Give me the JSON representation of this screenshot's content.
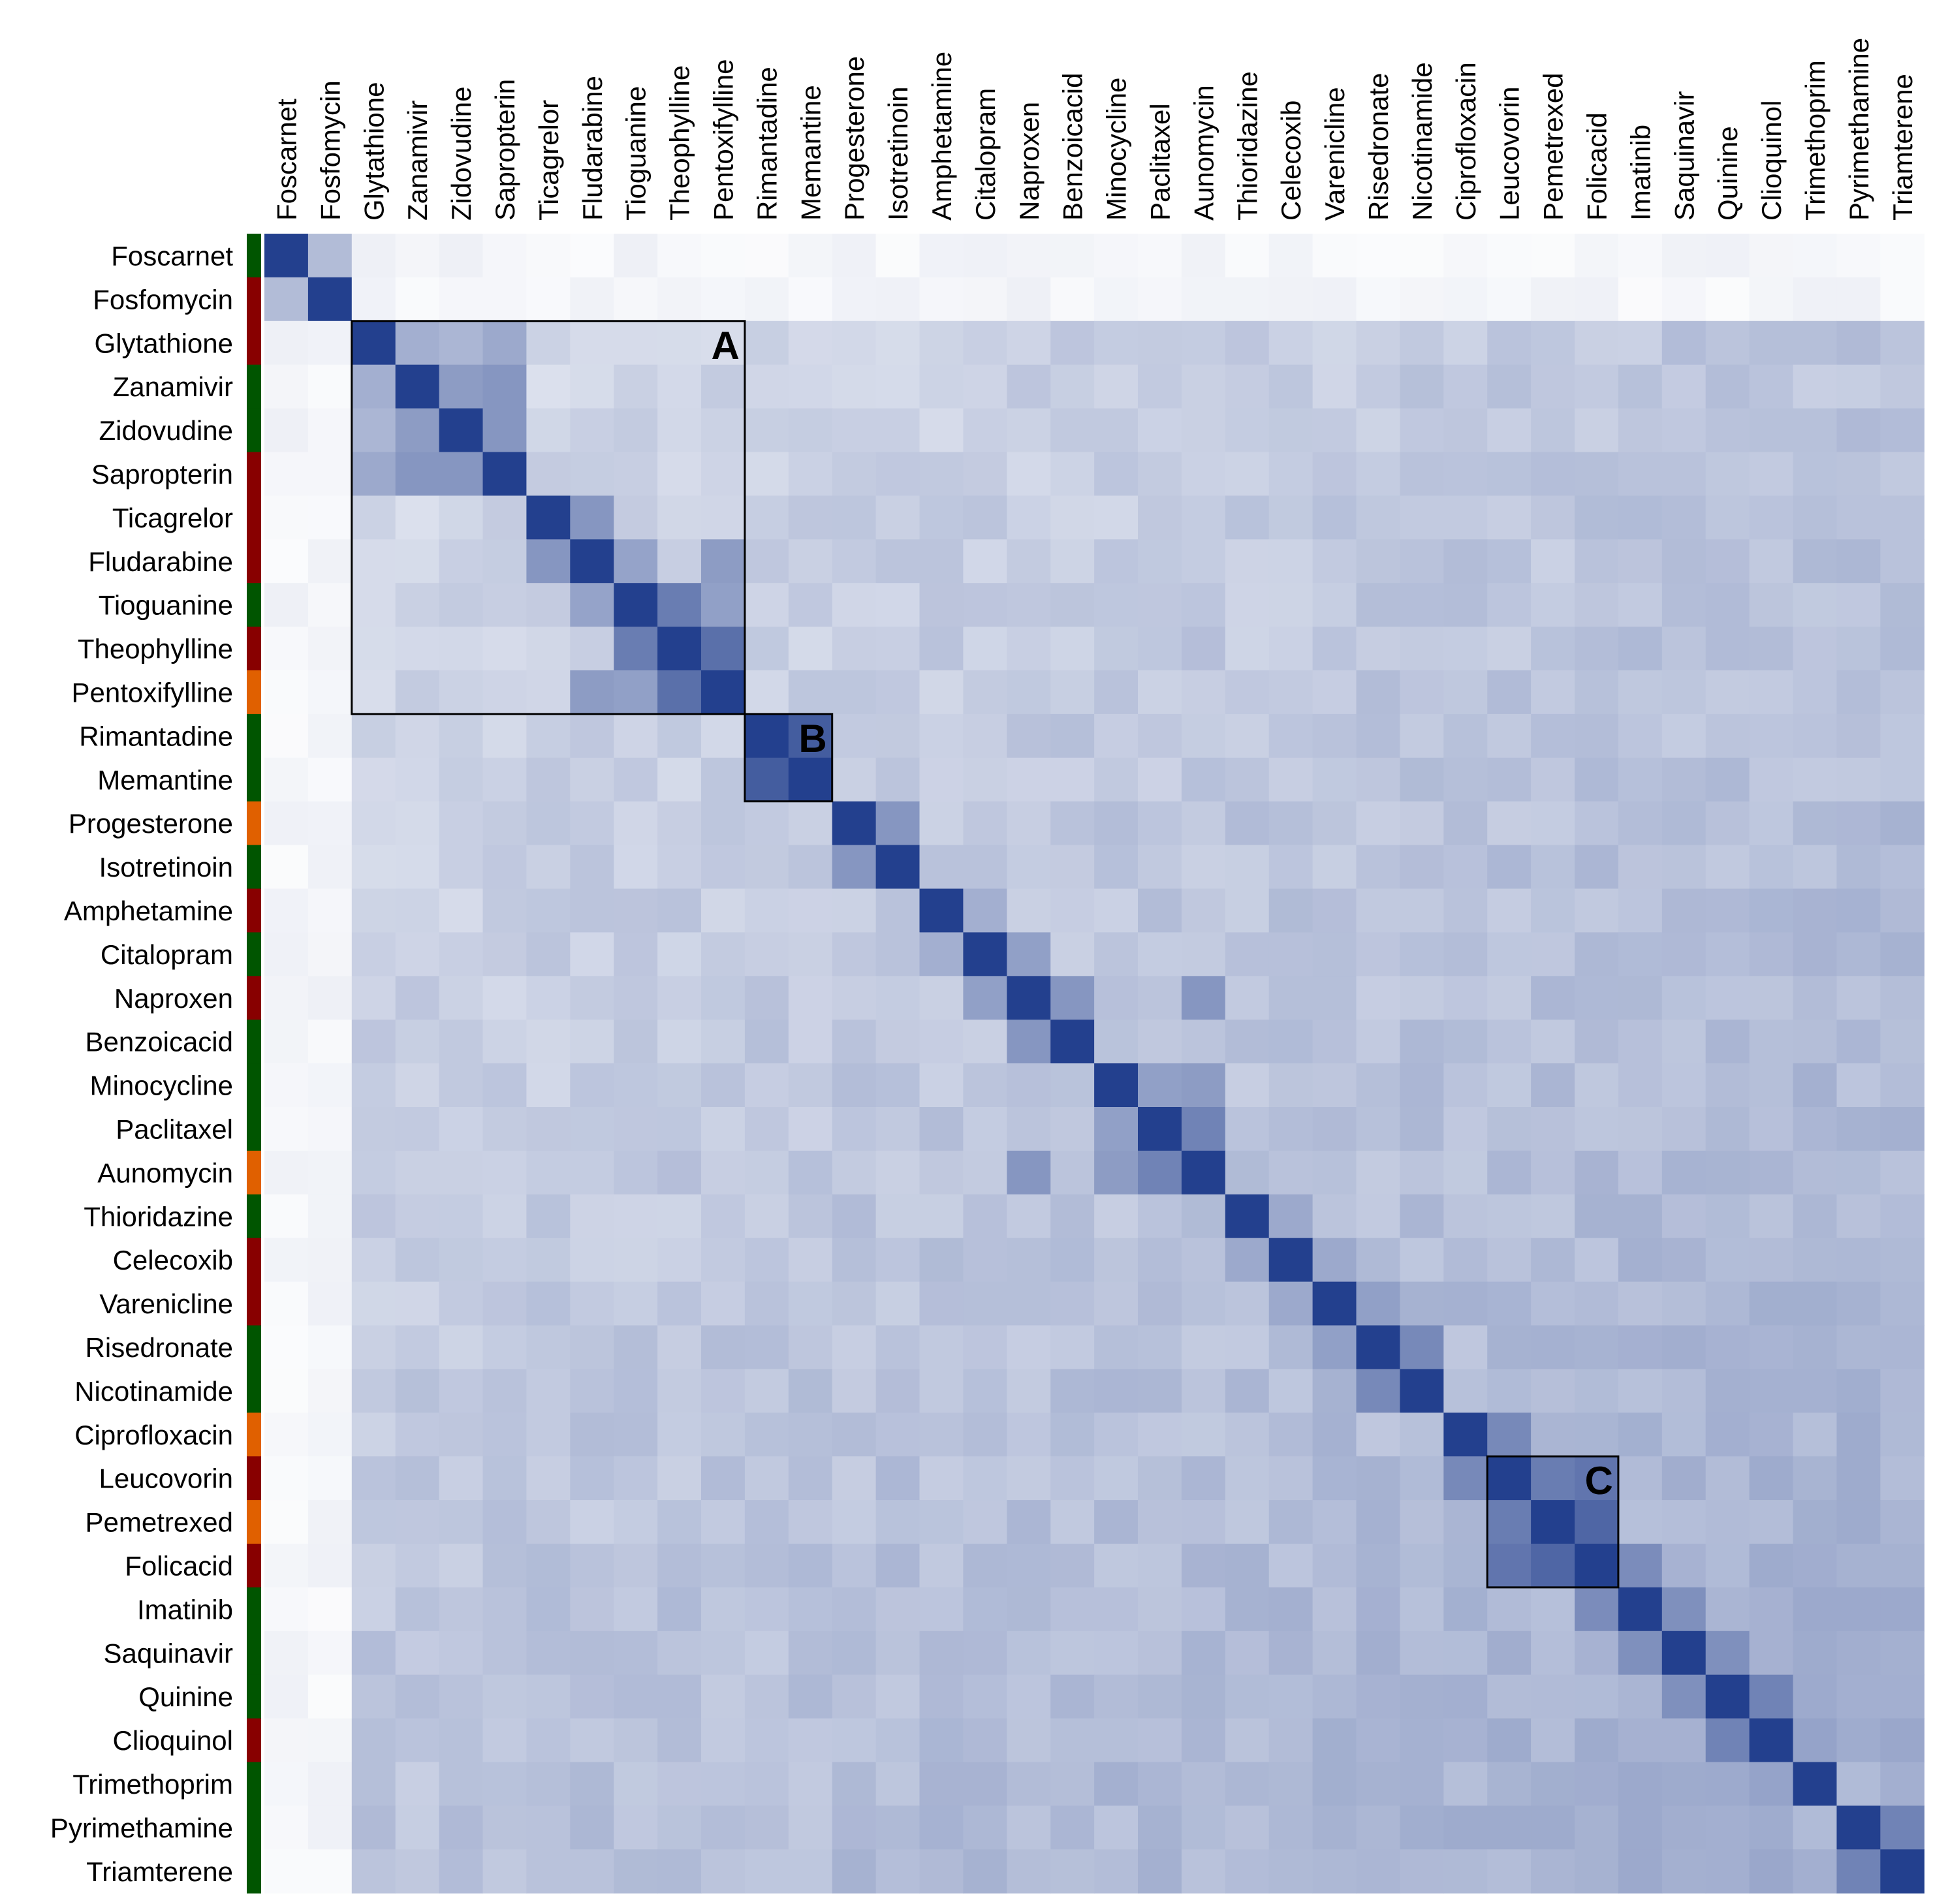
{
  "chart_data": {
    "type": "heatmap",
    "title": "",
    "xlabel": "",
    "ylabel": "",
    "labels": [
      "Foscarnet",
      "Fosfomycin",
      "Glytathione",
      "Zanamivir",
      "Zidovudine",
      "Sapropterin",
      "Ticagrelor",
      "Fludarabine",
      "Tioguanine",
      "Theophylline",
      "Pentoxifylline",
      "Rimantadine",
      "Memantine",
      "Progesterone",
      "Isotretinoin",
      "Amphetamine",
      "Citalopram",
      "Naproxen",
      "Benzoicacid",
      "Minocycline",
      "Paclitaxel",
      "Aunomycin",
      "Thioridazine",
      "Celecoxib",
      "Varenicline",
      "Risedronate",
      "Nicotinamide",
      "Ciprofloxacin",
      "Leucovorin",
      "Pemetrexed",
      "Folicacid",
      "Imatinib",
      "Saquinavir",
      "Quinine",
      "Clioquinol",
      "Trimethoprim",
      "Pyrimethamine",
      "Triamterene"
    ],
    "category_colors": [
      "#005500",
      "#880000",
      "#880000",
      "#005500",
      "#005500",
      "#880000",
      "#880000",
      "#880000",
      "#005500",
      "#880000",
      "#e06000",
      "#005500",
      "#005500",
      "#e06000",
      "#005500",
      "#880000",
      "#005500",
      "#880000",
      "#005500",
      "#005500",
      "#005500",
      "#e06000",
      "#005500",
      "#880000",
      "#880000",
      "#005500",
      "#005500",
      "#e06000",
      "#880000",
      "#e06000",
      "#880000",
      "#005500",
      "#005500",
      "#005500",
      "#880000",
      "#005500",
      "#005500",
      "#005500"
    ],
    "color_scale": {
      "low": "#ffffff",
      "high": "#23408e",
      "range": [
        0,
        1
      ]
    },
    "diagonal_value": 1.0,
    "pair_values": [
      {
        "rows": [
          0,
          1
        ],
        "value": 0.35
      },
      {
        "rows": [
          2,
          3
        ],
        "value": 0.42
      },
      {
        "rows": [
          2,
          4
        ],
        "value": 0.38
      },
      {
        "rows": [
          2,
          5
        ],
        "value": 0.45
      },
      {
        "rows": [
          3,
          4
        ],
        "value": 0.52
      },
      {
        "rows": [
          3,
          5
        ],
        "value": 0.55
      },
      {
        "rows": [
          4,
          5
        ],
        "value": 0.55
      },
      {
        "rows": [
          6,
          7
        ],
        "value": 0.55
      },
      {
        "rows": [
          7,
          8
        ],
        "value": 0.48
      },
      {
        "rows": [
          7,
          10
        ],
        "value": 0.52
      },
      {
        "rows": [
          8,
          9
        ],
        "value": 0.68
      },
      {
        "rows": [
          8,
          10
        ],
        "value": 0.5
      },
      {
        "rows": [
          9,
          10
        ],
        "value": 0.75
      },
      {
        "rows": [
          11,
          12
        ],
        "value": 0.85
      },
      {
        "rows": [
          13,
          14
        ],
        "value": 0.55
      },
      {
        "rows": [
          15,
          16
        ],
        "value": 0.42
      },
      {
        "rows": [
          16,
          17
        ],
        "value": 0.5
      },
      {
        "rows": [
          17,
          18
        ],
        "value": 0.55
      },
      {
        "rows": [
          17,
          21
        ],
        "value": 0.55
      },
      {
        "rows": [
          19,
          20
        ],
        "value": 0.5
      },
      {
        "rows": [
          19,
          21
        ],
        "value": 0.52
      },
      {
        "rows": [
          20,
          21
        ],
        "value": 0.65
      },
      {
        "rows": [
          22,
          23
        ],
        "value": 0.45
      },
      {
        "rows": [
          23,
          24
        ],
        "value": 0.45
      },
      {
        "rows": [
          24,
          25
        ],
        "value": 0.5
      },
      {
        "rows": [
          25,
          26
        ],
        "value": 0.62
      },
      {
        "rows": [
          27,
          28
        ],
        "value": 0.62
      },
      {
        "rows": [
          28,
          29
        ],
        "value": 0.68
      },
      {
        "rows": [
          28,
          30
        ],
        "value": 0.72
      },
      {
        "rows": [
          29,
          30
        ],
        "value": 0.8
      },
      {
        "rows": [
          30,
          31
        ],
        "value": 0.6
      },
      {
        "rows": [
          31,
          32
        ],
        "value": 0.58
      },
      {
        "rows": [
          32,
          33
        ],
        "value": 0.58
      },
      {
        "rows": [
          33,
          34
        ],
        "value": 0.65
      },
      {
        "rows": [
          34,
          35
        ],
        "value": 0.48
      },
      {
        "rows": [
          36,
          37
        ],
        "value": 0.65
      }
    ],
    "blocks": [
      {
        "label": "A",
        "start": 2,
        "end": 10
      },
      {
        "label": "B",
        "start": 11,
        "end": 12
      },
      {
        "label": "C",
        "start": 28,
        "end": 30
      }
    ],
    "legend": "none",
    "grid": false
  }
}
